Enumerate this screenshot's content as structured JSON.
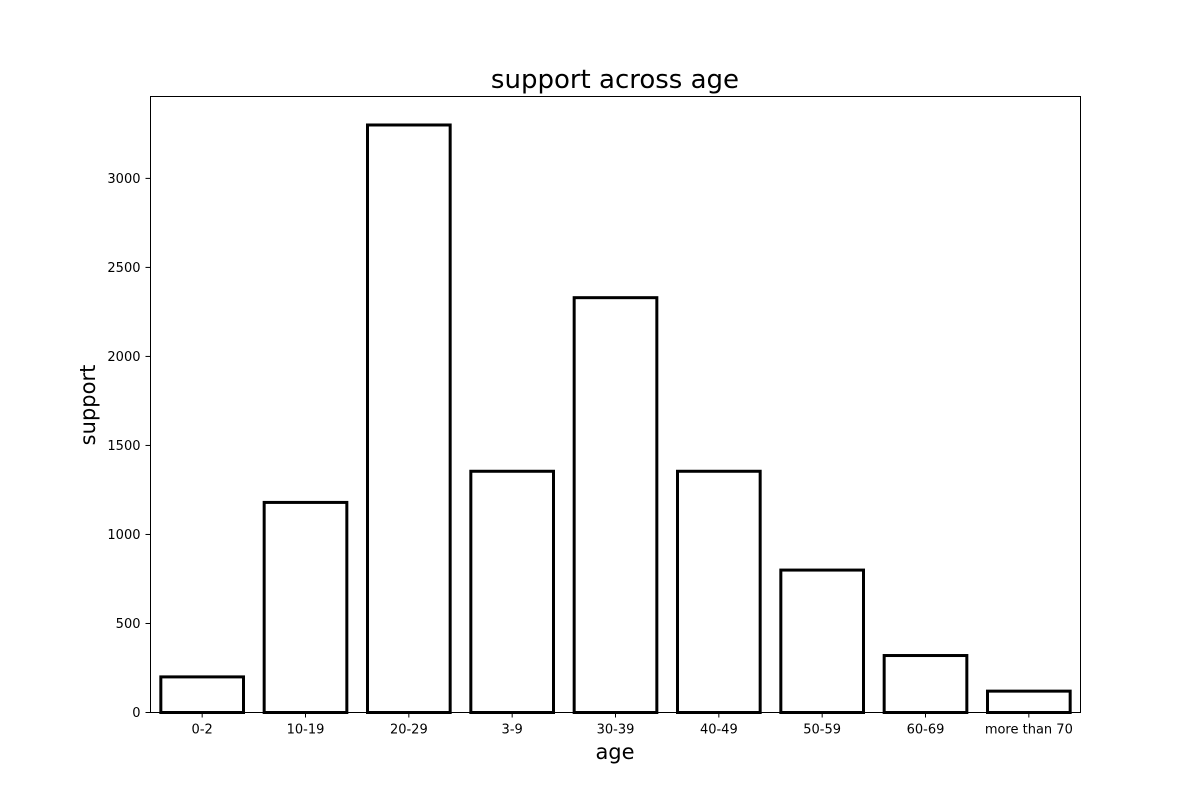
{
  "chart_data": {
    "type": "bar",
    "title": "support across age",
    "xlabel": "age",
    "ylabel": "support",
    "categories": [
      "0-2",
      "10-19",
      "20-29",
      "3-9",
      "30-39",
      "40-49",
      "50-59",
      "60-69",
      "more than 70"
    ],
    "values": [
      200,
      1180,
      3300,
      1355,
      2330,
      1355,
      800,
      320,
      120
    ],
    "ylim": [
      0,
      3460
    ],
    "yticks": [
      0,
      500,
      1000,
      1500,
      2000,
      2500,
      3000
    ],
    "grid": false,
    "bar_fill": "#ffffff",
    "bar_edge": "#000000"
  }
}
